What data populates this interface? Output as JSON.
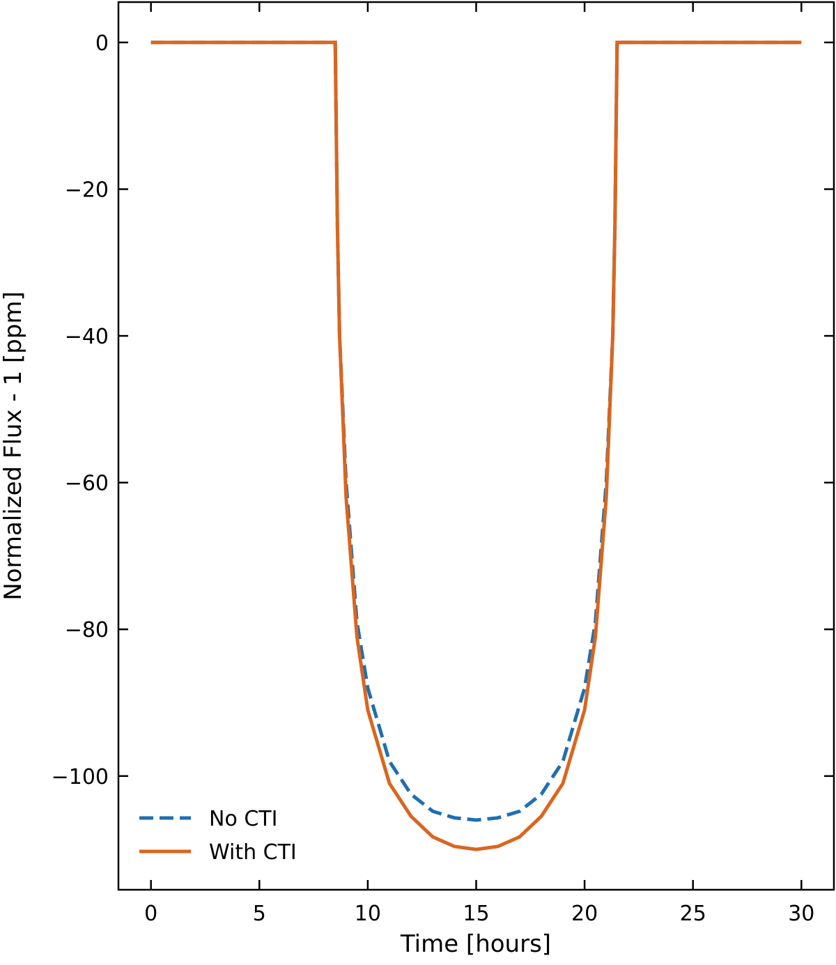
{
  "chart_data": {
    "type": "line",
    "x_label": "Time [hours]",
    "y_label": "Normalized Flux - 1 [ppm]",
    "x": [
      0,
      8.5,
      8.6,
      8.7,
      9,
      9.5,
      10,
      11,
      12,
      13,
      14,
      15,
      16,
      17,
      18,
      19,
      20,
      20.5,
      21,
      21.3,
      21.4,
      21.5,
      30
    ],
    "series": [
      {
        "name": "No CTI",
        "color": "#1f6fb0",
        "dash": true,
        "values": [
          0,
          0,
          -25,
          -40,
          -60,
          -79,
          -88,
          -98,
          -102.5,
          -104.8,
          -105.7,
          -106,
          -105.7,
          -104.8,
          -102.5,
          -98,
          -88,
          -79,
          -60,
          -40,
          -25,
          0,
          0
        ]
      },
      {
        "name": "With CTI",
        "color": "#d9661f",
        "dash": false,
        "values": [
          0,
          0,
          -25,
          -40,
          -62,
          -81,
          -91,
          -101,
          -105.5,
          -108.3,
          -109.6,
          -110,
          -109.6,
          -108.3,
          -105.5,
          -101,
          -91,
          -81,
          -62,
          -40,
          -25,
          0,
          0
        ]
      }
    ],
    "xlim": [
      -1.5,
      31.5
    ],
    "ylim": [
      -115.5,
      5.5
    ],
    "xticks": [
      0,
      5,
      10,
      15,
      20,
      25,
      30
    ],
    "yticks": [
      0,
      {
        "value": -20,
        "label": "−20"
      },
      {
        "value": -40,
        "label": "−40"
      },
      {
        "value": -60,
        "label": "−60"
      },
      {
        "value": -80,
        "label": "−80"
      },
      {
        "value": -100,
        "label": "−100"
      }
    ],
    "legend_position": "lower left",
    "grid": false
  }
}
